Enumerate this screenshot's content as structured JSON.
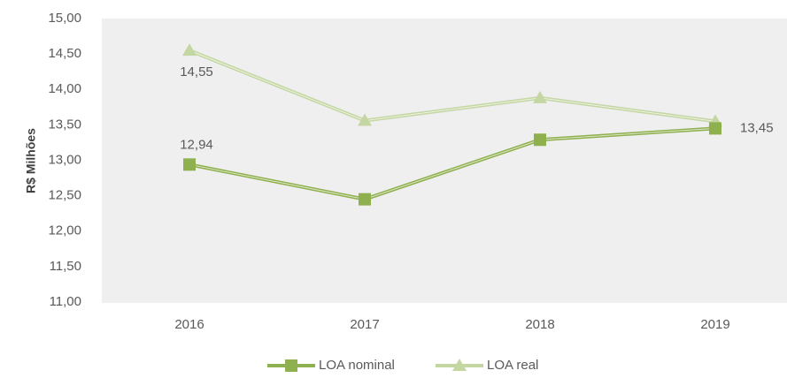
{
  "chart_data": {
    "type": "line",
    "y_label": "R$ Milhões",
    "categories": [
      "2016",
      "2017",
      "2018",
      "2019"
    ],
    "series": [
      {
        "name": "LOA nominal",
        "color": "#8fb04e",
        "marker": "square",
        "values": [
          12.94,
          12.45,
          13.29,
          13.45
        ],
        "value_labels": [
          "12,94",
          null,
          null,
          "13,45"
        ]
      },
      {
        "name": "LOA real",
        "color": "#c4d6a2",
        "marker": "triangle",
        "values": [
          14.55,
          13.56,
          13.88,
          13.55
        ],
        "value_labels": [
          "14,55",
          null,
          null,
          null
        ]
      }
    ],
    "ylim": [
      11,
      15
    ],
    "yticks": [
      {
        "value": 11,
        "label": "11,00"
      },
      {
        "value": 11.5,
        "label": "11,50"
      },
      {
        "value": 12,
        "label": "12,00"
      },
      {
        "value": 12.5,
        "label": "12,50"
      },
      {
        "value": 13,
        "label": "13,00"
      },
      {
        "value": 13.5,
        "label": "13,50"
      },
      {
        "value": 14,
        "label": "14,00"
      },
      {
        "value": 14.5,
        "label": "14,50"
      },
      {
        "value": 15,
        "label": "15,00"
      }
    ],
    "grid": false,
    "legend": "bottom"
  }
}
